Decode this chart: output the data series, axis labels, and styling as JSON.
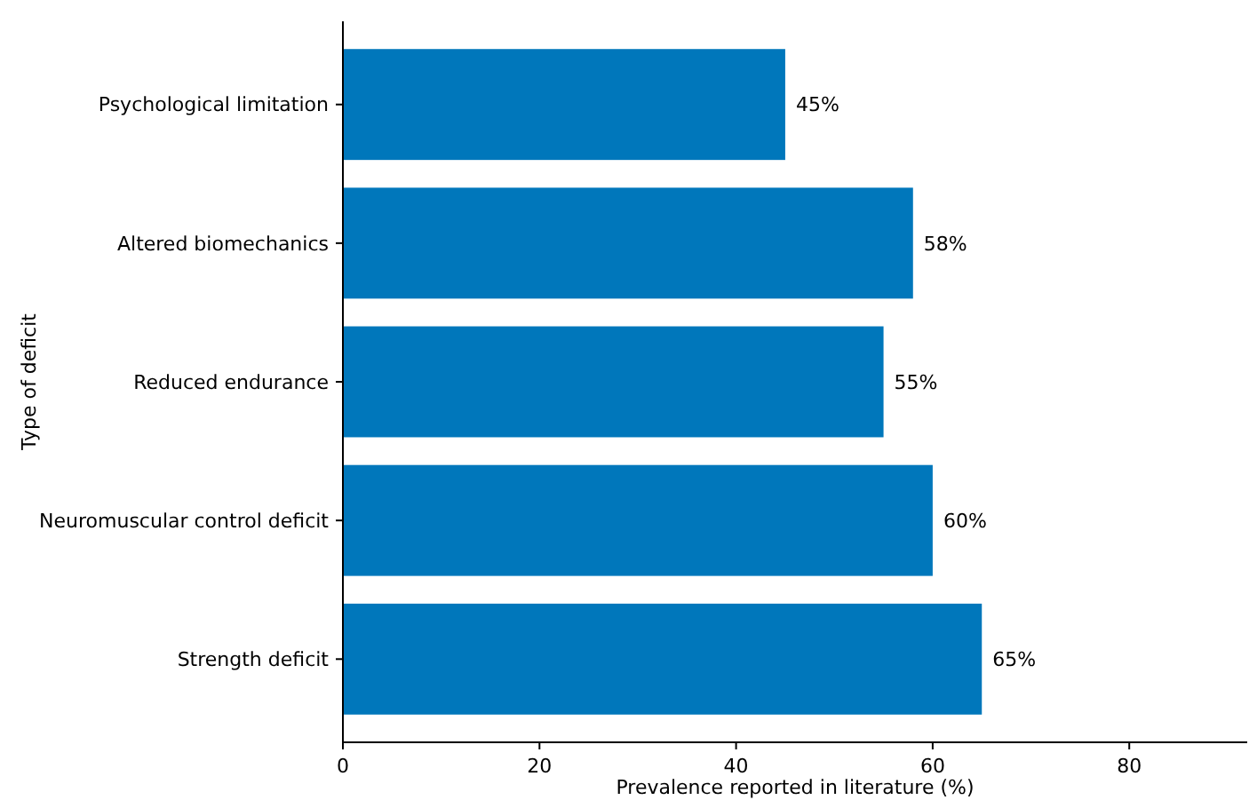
{
  "chart_data": {
    "type": "bar",
    "orientation": "horizontal",
    "xlabel": "Prevalence reported in literature (%)",
    "ylabel": "Type of deficit",
    "categories": [
      "Psychological limitation",
      "Altered biomechanics",
      "Reduced endurance",
      "Neuromuscular control deficit",
      "Strength deficit"
    ],
    "values": [
      45,
      58,
      55,
      60,
      65
    ],
    "value_labels": [
      "45%",
      "58%",
      "55%",
      "60%",
      "65%"
    ],
    "color": "#0077bb",
    "xlim": [
      0,
      92
    ],
    "xticks": [
      0,
      20,
      40,
      60,
      80
    ],
    "grid": false
  }
}
